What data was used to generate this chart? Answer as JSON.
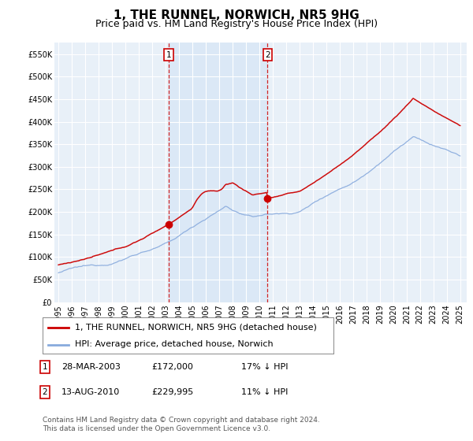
{
  "title": "1, THE RUNNEL, NORWICH, NR5 9HG",
  "subtitle": "Price paid vs. HM Land Registry's House Price Index (HPI)",
  "ylim": [
    0,
    575000
  ],
  "yticks": [
    0,
    50000,
    100000,
    150000,
    200000,
    250000,
    300000,
    350000,
    400000,
    450000,
    500000,
    550000
  ],
  "background_color": "#ffffff",
  "plot_bg_color": "#e8f0f8",
  "grid_color": "#ffffff",
  "shaded_region_color": "#ddeeff",
  "sale1_date": "28-MAR-2003",
  "sale1_price": 172000,
  "sale1_hpi_pct": "17%",
  "sale2_date": "13-AUG-2010",
  "sale2_price": 229995,
  "sale2_hpi_pct": "11%",
  "sale1_label": "1",
  "sale2_label": "2",
  "sale1_year": 2003.23,
  "sale2_year": 2010.62,
  "legend_line1": "1, THE RUNNEL, NORWICH, NR5 9HG (detached house)",
  "legend_line2": "HPI: Average price, detached house, Norwich",
  "footer": "Contains HM Land Registry data © Crown copyright and database right 2024.\nThis data is licensed under the Open Government Licence v3.0.",
  "line_color_price": "#cc0000",
  "line_color_hpi": "#88aadd",
  "vline_color": "#cc0000",
  "title_fontsize": 11,
  "subtitle_fontsize": 9,
  "tick_fontsize": 7,
  "legend_fontsize": 8,
  "footer_fontsize": 6.5,
  "xstart": 1995,
  "xend": 2025
}
